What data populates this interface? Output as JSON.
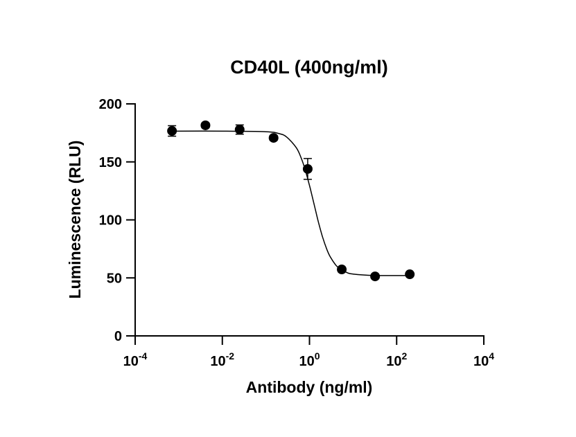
{
  "chart_data": {
    "type": "scatter",
    "title": "CD40L (400ng/ml)",
    "x_label": "Antibody (ng/ml)",
    "y_label": "Luminescence (RLU)",
    "xscale": "log",
    "xlim": [
      0.0001,
      10000
    ],
    "xticks": [
      {
        "value": 0.0001,
        "label": "10",
        "exponent": "-4"
      },
      {
        "value": 0.01,
        "label": "10",
        "exponent": "-2"
      },
      {
        "value": 1,
        "label": "10",
        "exponent": "0"
      },
      {
        "value": 100,
        "label": "10",
        "exponent": "2"
      },
      {
        "value": 10000,
        "label": "10",
        "exponent": "4"
      }
    ],
    "ylim": [
      0,
      200
    ],
    "yticks": [
      0,
      50,
      100,
      150,
      200
    ],
    "series": [
      {
        "color": "#000000",
        "x": [
          0.0007,
          0.0041,
          0.025,
          0.15,
          0.91,
          5.5,
          32,
          200
        ],
        "values": [
          176.7,
          181.5,
          177.9,
          170.7,
          143.9,
          57.3,
          51.3,
          53.1
        ],
        "errors": [
          4.5,
          2,
          4,
          2,
          9,
          2,
          1.5,
          1.5
        ]
      }
    ],
    "fit": {
      "color": "#000000",
      "x": [
        0.0007,
        0.01,
        0.1,
        0.2,
        0.3,
        0.5,
        0.65,
        0.8,
        1,
        1.1,
        1.26,
        1.4,
        1.6,
        2,
        2.5,
        3,
        4,
        5,
        7,
        10,
        30,
        200
      ],
      "values": [
        176.5,
        176.5,
        176.0,
        174.4,
        171.4,
        162.1,
        153.0,
        143.0,
        129.7,
        123.5,
        114.3,
        107.1,
        98.2,
        85.1,
        74.6,
        68.1,
        61.1,
        57.7,
        54.8,
        53.3,
        52.1,
        52.0
      ]
    }
  }
}
